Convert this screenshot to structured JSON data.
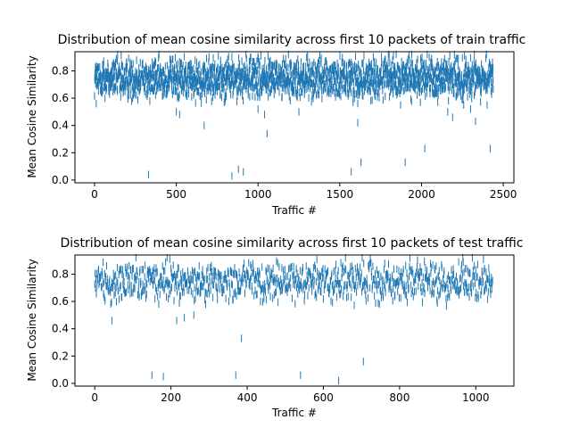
{
  "chart_data": [
    {
      "type": "scatter",
      "marker": "vertical-line",
      "title": "Distribution of mean cosine similarity across first 10 packets of train traffic",
      "xlabel": "Traffic #",
      "ylabel": "Mean Cosine Similarity",
      "xlim": [
        -120,
        2565
      ],
      "ylim": [
        -0.02,
        0.94
      ],
      "xticks": [
        0,
        500,
        1000,
        1500,
        2000,
        2500
      ],
      "xtick_labels": [
        "0",
        "500",
        "1000",
        "1500",
        "2000",
        "2500"
      ],
      "yticks": [
        0.0,
        0.2,
        0.4,
        0.6,
        0.8
      ],
      "ytick_labels": [
        "0.0",
        "0.2",
        "0.4",
        "0.6",
        "0.8"
      ],
      "grid": false,
      "color": "#1f77b4",
      "n_points": 2440,
      "bulk_range": [
        0.55,
        0.92
      ],
      "outliers": [
        [
          10,
          0.56
        ],
        [
          330,
          0.04
        ],
        [
          500,
          0.5
        ],
        [
          520,
          0.48
        ],
        [
          670,
          0.4
        ],
        [
          840,
          0.03
        ],
        [
          880,
          0.08
        ],
        [
          910,
          0.06
        ],
        [
          1000,
          0.52
        ],
        [
          1040,
          0.48
        ],
        [
          1055,
          0.34
        ],
        [
          1250,
          0.5
        ],
        [
          1570,
          0.06
        ],
        [
          1610,
          0.42
        ],
        [
          1630,
          0.13
        ],
        [
          1900,
          0.13
        ],
        [
          2020,
          0.23
        ],
        [
          2160,
          0.5
        ],
        [
          2190,
          0.46
        ],
        [
          2330,
          0.43
        ],
        [
          2420,
          0.23
        ],
        [
          2300,
          0.52
        ]
      ]
    },
    {
      "type": "scatter",
      "marker": "vertical-line",
      "title": "Distribution of mean cosine similarity across first 10 packets of test traffic",
      "xlabel": "Traffic #",
      "ylabel": "Mean Cosine Similarity",
      "xlim": [
        -52,
        1100
      ],
      "ylim": [
        -0.02,
        0.94
      ],
      "xticks": [
        0,
        200,
        400,
        600,
        800,
        1000
      ],
      "xtick_labels": [
        "0",
        "200",
        "400",
        "600",
        "800",
        "1000"
      ],
      "yticks": [
        0.0,
        0.2,
        0.4,
        0.6,
        0.8
      ],
      "ytick_labels": [
        "0.0",
        "0.2",
        "0.4",
        "0.6",
        "0.8"
      ],
      "grid": false,
      "color": "#1f77b4",
      "n_points": 1045,
      "bulk_range": [
        0.52,
        0.92
      ],
      "outliers": [
        [
          45,
          0.46
        ],
        [
          150,
          0.06
        ],
        [
          180,
          0.05
        ],
        [
          215,
          0.46
        ],
        [
          235,
          0.48
        ],
        [
          260,
          0.5
        ],
        [
          370,
          0.06
        ],
        [
          385,
          0.33
        ],
        [
          540,
          0.06
        ],
        [
          640,
          0.02
        ],
        [
          705,
          0.16
        ]
      ]
    }
  ]
}
